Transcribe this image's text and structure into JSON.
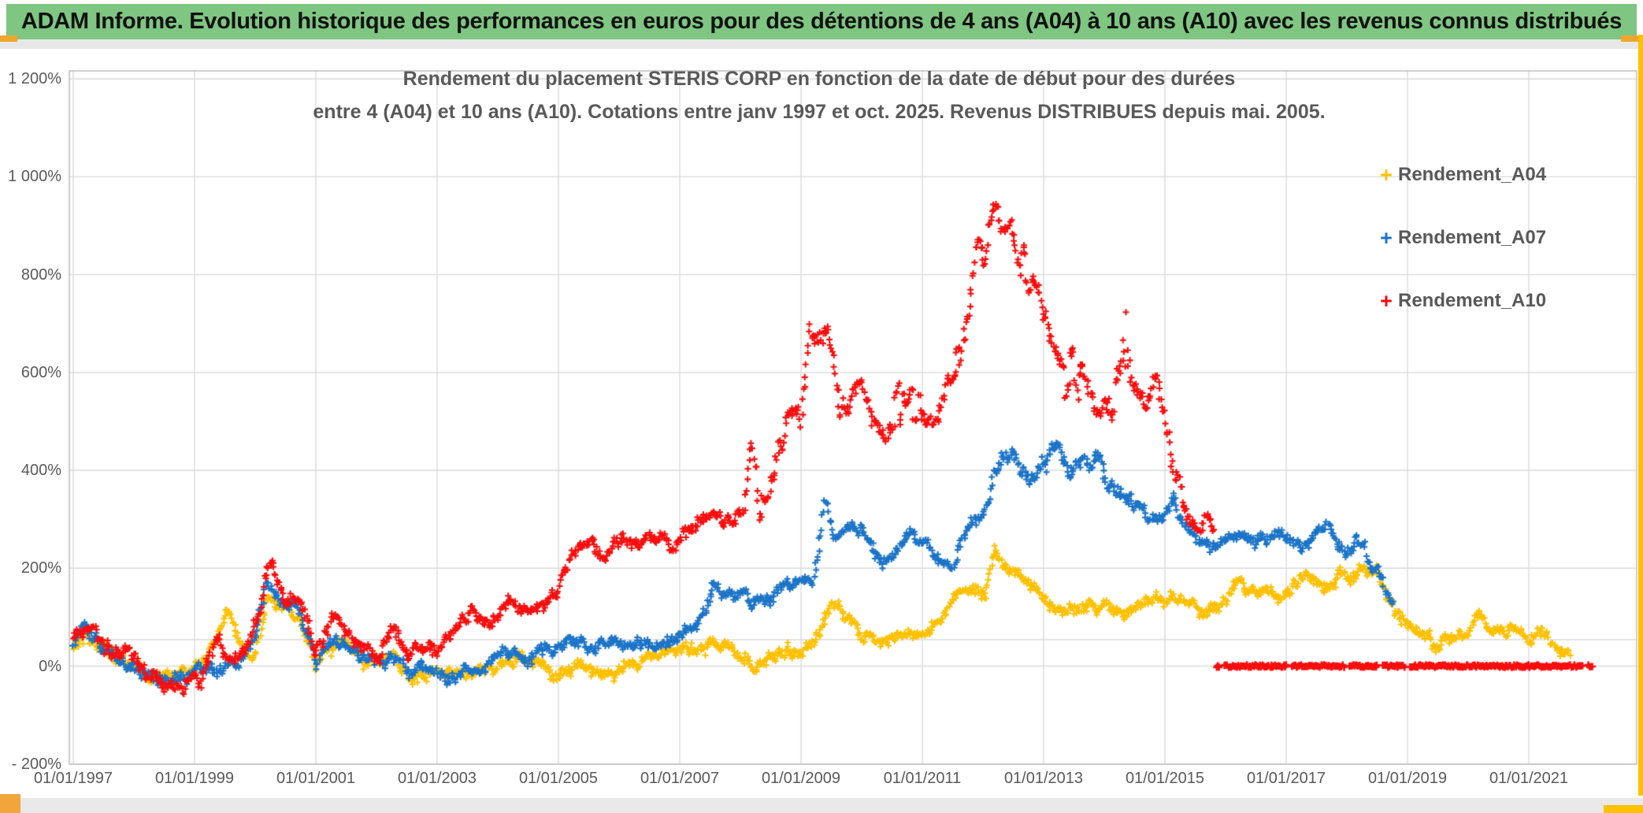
{
  "banner": {
    "text": "ADAM Informe. Evolution historique des performances en euros pour des détentions de 4 ans (A04) à 10 ans (A10) avec les revenus connus distribués",
    "bg_color": "#7ec681",
    "accent_gold": "#ffc000",
    "accent_orange": "#eea62c"
  },
  "chart_data": {
    "type": "scatter",
    "title_line1": "Rendement du placement STERIS CORP en fonction de la date de début pour des durées",
    "title_line2": "entre 4 (A04) et 10 ans (A10). Cotations entre janv 1997 et oct. 2025. Revenus DISTRIBUES depuis mai. 2005.",
    "x_ticks": [
      "01/01/1997",
      "01/01/1999",
      "01/01/2001",
      "01/01/2003",
      "01/01/2005",
      "01/01/2007",
      "01/01/2009",
      "01/01/2011",
      "01/01/2013",
      "01/01/2015",
      "01/01/2017",
      "01/01/2019",
      "01/01/2021"
    ],
    "y_ticks": [
      "1 200%",
      "1 000%",
      "800%",
      "600%",
      "400%",
      "200%",
      "0%",
      "- 200%"
    ],
    "ylim": [
      -200,
      1200
    ],
    "y_step": 200,
    "x_start_year": 1997,
    "x_years_per_tick": 2,
    "grid_on": true,
    "grid_color": "#d9d9d9",
    "border_color": "#bfbfbf",
    "extra_hline_value": 54,
    "axis_text_color": "#595959",
    "legend_position": "right-top",
    "legend": [
      {
        "label": "Rendement_A04",
        "color": "#ffc000"
      },
      {
        "label": "Rendement_A07",
        "color": "#1b74c8"
      },
      {
        "label": "Rendement_A10",
        "color": "#f90d0d"
      }
    ],
    "series": [
      {
        "name": "Rendement_A04",
        "color": "#ffc000",
        "end": 2021.68,
        "noise": 1.0,
        "waypoints": [
          [
            1997.0,
            35
          ],
          [
            1997.2,
            70
          ],
          [
            1997.45,
            45
          ],
          [
            1997.7,
            15
          ],
          [
            1998.0,
            5
          ],
          [
            1998.3,
            -20
          ],
          [
            1998.6,
            -35
          ],
          [
            1998.9,
            -20
          ],
          [
            1999.1,
            -10
          ],
          [
            1999.4,
            60
          ],
          [
            1999.55,
            100
          ],
          [
            1999.8,
            20
          ],
          [
            2000.0,
            35
          ],
          [
            2000.2,
            150
          ],
          [
            2000.45,
            120
          ],
          [
            2000.7,
            110
          ],
          [
            2001.0,
            -5
          ],
          [
            2001.2,
            20
          ],
          [
            2001.5,
            45
          ],
          [
            2001.8,
            5
          ],
          [
            2002.0,
            10
          ],
          [
            2002.3,
            15
          ],
          [
            2002.6,
            -15
          ],
          [
            2003.0,
            -5
          ],
          [
            2003.3,
            -20
          ],
          [
            2003.7,
            -15
          ],
          [
            2004.0,
            -5
          ],
          [
            2004.3,
            15
          ],
          [
            2004.6,
            5
          ],
          [
            2005.0,
            -15
          ],
          [
            2005.3,
            -5
          ],
          [
            2005.6,
            -10
          ],
          [
            2006.0,
            -15
          ],
          [
            2006.3,
            10
          ],
          [
            2006.6,
            15
          ],
          [
            2007.0,
            45
          ],
          [
            2007.3,
            25
          ],
          [
            2007.6,
            35
          ],
          [
            2008.0,
            30
          ],
          [
            2008.3,
            5
          ],
          [
            2008.6,
            15
          ],
          [
            2009.0,
            25
          ],
          [
            2009.3,
            80
          ],
          [
            2009.5,
            125
          ],
          [
            2009.7,
            95
          ],
          [
            2010.0,
            60
          ],
          [
            2010.3,
            45
          ],
          [
            2010.6,
            70
          ],
          [
            2011.0,
            70
          ],
          [
            2011.3,
            90
          ],
          [
            2011.6,
            150
          ],
          [
            2011.85,
            160
          ],
          [
            2012.05,
            165
          ],
          [
            2012.2,
            245
          ],
          [
            2012.4,
            195
          ],
          [
            2012.6,
            185
          ],
          [
            2012.85,
            155
          ],
          [
            2013.1,
            125
          ],
          [
            2013.4,
            115
          ],
          [
            2013.7,
            135
          ],
          [
            2014.0,
            130
          ],
          [
            2014.3,
            105
          ],
          [
            2014.6,
            125
          ],
          [
            2014.9,
            135
          ],
          [
            2015.1,
            150
          ],
          [
            2015.35,
            140
          ],
          [
            2015.6,
            105
          ],
          [
            2015.9,
            125
          ],
          [
            2016.1,
            160
          ],
          [
            2016.35,
            170
          ],
          [
            2016.6,
            140
          ],
          [
            2016.9,
            150
          ],
          [
            2017.1,
            175
          ],
          [
            2017.35,
            205
          ],
          [
            2017.6,
            150
          ],
          [
            2017.9,
            185
          ],
          [
            2018.1,
            165
          ],
          [
            2018.35,
            195
          ],
          [
            2018.5,
            205
          ],
          [
            2018.65,
            135
          ],
          [
            2018.9,
            100
          ],
          [
            2019.1,
            80
          ],
          [
            2019.4,
            55
          ],
          [
            2019.7,
            70
          ],
          [
            2020.0,
            60
          ],
          [
            2020.15,
            110
          ],
          [
            2020.3,
            85
          ],
          [
            2020.6,
            75
          ],
          [
            2020.9,
            65
          ],
          [
            2021.1,
            60
          ],
          [
            2021.3,
            70
          ],
          [
            2021.5,
            35
          ],
          [
            2021.68,
            28
          ]
        ]
      },
      {
        "name": "Rendement_A07",
        "color": "#1b74c8",
        "end": 2018.78,
        "noise": 1.0,
        "waypoints": [
          [
            1997.0,
            50
          ],
          [
            1997.2,
            75
          ],
          [
            1997.45,
            40
          ],
          [
            1997.7,
            5
          ],
          [
            1998.0,
            -5
          ],
          [
            1998.3,
            -25
          ],
          [
            1998.6,
            -40
          ],
          [
            1998.9,
            -25
          ],
          [
            1999.1,
            -15
          ],
          [
            1999.4,
            0
          ],
          [
            1999.7,
            -5
          ],
          [
            2000.0,
            55
          ],
          [
            2000.2,
            165
          ],
          [
            2000.45,
            115
          ],
          [
            2000.7,
            125
          ],
          [
            2001.0,
            5
          ],
          [
            2001.25,
            45
          ],
          [
            2001.55,
            25
          ],
          [
            2001.8,
            15
          ],
          [
            2002.0,
            5
          ],
          [
            2002.3,
            25
          ],
          [
            2002.6,
            -20
          ],
          [
            2003.0,
            -30
          ],
          [
            2003.4,
            -15
          ],
          [
            2003.8,
            5
          ],
          [
            2004.1,
            20
          ],
          [
            2004.4,
            30
          ],
          [
            2004.7,
            15
          ],
          [
            2005.0,
            35
          ],
          [
            2005.3,
            55
          ],
          [
            2005.6,
            40
          ],
          [
            2006.0,
            50
          ],
          [
            2006.3,
            70
          ],
          [
            2006.6,
            45
          ],
          [
            2007.0,
            60
          ],
          [
            2007.3,
            90
          ],
          [
            2007.55,
            150
          ],
          [
            2007.8,
            135
          ],
          [
            2008.0,
            155
          ],
          [
            2008.25,
            125
          ],
          [
            2008.5,
            135
          ],
          [
            2008.75,
            165
          ],
          [
            2009.0,
            185
          ],
          [
            2009.2,
            160
          ],
          [
            2009.4,
            330
          ],
          [
            2009.55,
            260
          ],
          [
            2009.75,
            290
          ],
          [
            2010.0,
            275
          ],
          [
            2010.25,
            215
          ],
          [
            2010.5,
            225
          ],
          [
            2010.75,
            245
          ],
          [
            2011.0,
            250
          ],
          [
            2011.25,
            215
          ],
          [
            2011.5,
            205
          ],
          [
            2011.75,
            265
          ],
          [
            2012.0,
            310
          ],
          [
            2012.25,
            395
          ],
          [
            2012.5,
            430
          ],
          [
            2012.75,
            385
          ],
          [
            2013.0,
            420
          ],
          [
            2013.2,
            450
          ],
          [
            2013.45,
            395
          ],
          [
            2013.7,
            430
          ],
          [
            2013.95,
            425
          ],
          [
            2014.2,
            355
          ],
          [
            2014.45,
            340
          ],
          [
            2014.7,
            300
          ],
          [
            2014.95,
            320
          ],
          [
            2015.2,
            345
          ],
          [
            2015.45,
            270
          ],
          [
            2015.7,
            235
          ],
          [
            2015.95,
            255
          ],
          [
            2016.2,
            270
          ],
          [
            2016.45,
            240
          ],
          [
            2016.7,
            255
          ],
          [
            2016.95,
            265
          ],
          [
            2017.2,
            250
          ],
          [
            2017.45,
            265
          ],
          [
            2017.7,
            270
          ],
          [
            2017.95,
            240
          ],
          [
            2018.15,
            265
          ],
          [
            2018.35,
            225
          ],
          [
            2018.55,
            185
          ],
          [
            2018.78,
            130
          ]
        ]
      },
      {
        "name": "Rendement_A10",
        "color": "#f90d0d",
        "end": 2015.82,
        "noise": 1.15,
        "zero_band": {
          "start": 2015.85,
          "end": 2022.05,
          "value": 0
        },
        "waypoints": [
          [
            1997.0,
            60
          ],
          [
            1997.2,
            85
          ],
          [
            1997.45,
            50
          ],
          [
            1997.7,
            20
          ],
          [
            1998.0,
            5
          ],
          [
            1998.3,
            -25
          ],
          [
            1998.6,
            -35
          ],
          [
            1998.9,
            -20
          ],
          [
            1999.1,
            -15
          ],
          [
            1999.35,
            55
          ],
          [
            1999.6,
            5
          ],
          [
            1999.8,
            25
          ],
          [
            2000.0,
            80
          ],
          [
            2000.25,
            215
          ],
          [
            2000.5,
            145
          ],
          [
            2000.7,
            160
          ],
          [
            2001.0,
            20
          ],
          [
            2001.25,
            95
          ],
          [
            2001.5,
            70
          ],
          [
            2001.75,
            35
          ],
          [
            2002.0,
            15
          ],
          [
            2002.25,
            75
          ],
          [
            2002.5,
            25
          ],
          [
            2002.75,
            35
          ],
          [
            2003.0,
            20
          ],
          [
            2003.3,
            80
          ],
          [
            2003.6,
            100
          ],
          [
            2003.9,
            95
          ],
          [
            2004.2,
            125
          ],
          [
            2004.5,
            115
          ],
          [
            2004.8,
            135
          ],
          [
            2005.0,
            165
          ],
          [
            2005.2,
            235
          ],
          [
            2005.45,
            250
          ],
          [
            2005.7,
            220
          ],
          [
            2005.9,
            240
          ],
          [
            2006.1,
            260
          ],
          [
            2006.35,
            240
          ],
          [
            2006.6,
            270
          ],
          [
            2006.85,
            255
          ],
          [
            2007.1,
            265
          ],
          [
            2007.35,
            285
          ],
          [
            2007.6,
            310
          ],
          [
            2007.85,
            290
          ],
          [
            2008.05,
            315
          ],
          [
            2008.2,
            440
          ],
          [
            2008.4,
            390
          ],
          [
            2008.6,
            425
          ],
          [
            2008.8,
            505
          ],
          [
            2009.0,
            495
          ],
          [
            2009.15,
            690
          ],
          [
            2009.3,
            640
          ],
          [
            2009.45,
            680
          ],
          [
            2009.6,
            575
          ],
          [
            2009.8,
            525
          ],
          [
            2010.0,
            560
          ],
          [
            2010.2,
            480
          ],
          [
            2010.4,
            435
          ],
          [
            2010.6,
            525
          ],
          [
            2010.8,
            555
          ],
          [
            2011.0,
            515
          ],
          [
            2011.2,
            480
          ],
          [
            2011.4,
            555
          ],
          [
            2011.6,
            595
          ],
          [
            2011.75,
            690
          ],
          [
            2011.9,
            870
          ],
          [
            2012.05,
            845
          ],
          [
            2012.15,
            955
          ],
          [
            2012.3,
            860
          ],
          [
            2012.45,
            915
          ],
          [
            2012.6,
            845
          ],
          [
            2012.75,
            790
          ],
          [
            2012.9,
            815
          ],
          [
            2013.05,
            700
          ],
          [
            2013.2,
            645
          ],
          [
            2013.35,
            600
          ],
          [
            2013.5,
            650
          ],
          [
            2013.7,
            560
          ],
          [
            2013.9,
            505
          ],
          [
            2014.05,
            545
          ],
          [
            2014.2,
            600
          ],
          [
            2014.35,
            635
          ],
          [
            2014.5,
            570
          ],
          [
            2014.7,
            520
          ],
          [
            2014.85,
            555
          ],
          [
            2015.0,
            480
          ],
          [
            2015.15,
            405
          ],
          [
            2015.3,
            330
          ],
          [
            2015.5,
            285
          ],
          [
            2015.65,
            305
          ],
          [
            2015.82,
            275
          ]
        ]
      }
    ]
  }
}
